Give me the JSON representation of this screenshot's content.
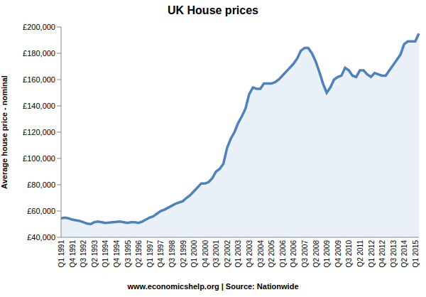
{
  "chart_data": {
    "type": "line",
    "title": "UK House prices",
    "y_label": "Average house price - nominal",
    "annotations": [
      "www.economicshelp.org | Source: Nationwide"
    ],
    "categories": [
      "Q1 1991",
      null,
      null,
      "Q4 1991",
      null,
      null,
      "Q3 1992",
      null,
      null,
      "Q2 1993",
      null,
      null,
      "Q1 1994",
      null,
      null,
      "Q4 1994",
      null,
      null,
      "Q3 1995",
      null,
      null,
      "Q2 1996",
      null,
      null,
      "Q1 1997",
      null,
      null,
      "Q4 1997",
      null,
      null,
      "Q3 1998",
      null,
      null,
      "Q2 1999",
      null,
      null,
      "Q1 2000",
      null,
      null,
      "Q4 2000",
      null,
      null,
      "Q3 2001",
      null,
      null,
      "Q2 2002",
      null,
      null,
      "Q1 2003",
      null,
      null,
      "Q4 2003",
      null,
      null,
      "Q3 2004",
      null,
      null,
      "Q2 2005",
      null,
      null,
      "Q1 2006",
      null,
      null,
      "Q4 2006",
      null,
      null,
      "Q3 2007",
      null,
      null,
      "Q2 2008",
      null,
      null,
      "Q1 2009",
      null,
      null,
      "Q4 2009",
      null,
      null,
      "Q3 2010",
      null,
      null,
      "Q2 2011",
      null,
      null,
      "Q1 2012",
      null,
      null,
      "Q4 2012",
      null,
      null,
      "Q3 2013",
      null,
      null,
      "Q2 2014",
      null,
      null,
      "Q1 2015",
      null
    ],
    "values": [
      54500,
      55000,
      54500,
      53500,
      53000,
      52500,
      51500,
      50500,
      50000,
      51500,
      52000,
      51500,
      51000,
      51200,
      51500,
      51800,
      52000,
      51500,
      51000,
      51500,
      51500,
      51000,
      52000,
      53500,
      55000,
      56000,
      58000,
      60000,
      61000,
      62500,
      64000,
      65500,
      66500,
      67500,
      70000,
      72000,
      75000,
      78000,
      81000,
      81000,
      82000,
      85000,
      90000,
      92000,
      96000,
      108000,
      115000,
      120000,
      127000,
      132000,
      138000,
      149000,
      154000,
      153000,
      153000,
      157000,
      157000,
      157000,
      158000,
      160000,
      163000,
      166000,
      169000,
      172000,
      176000,
      182000,
      184000,
      184000,
      180000,
      174000,
      166000,
      157000,
      150000,
      154000,
      160000,
      162000,
      163000,
      169000,
      167000,
      163000,
      162000,
      167000,
      167000,
      164000,
      162000,
      165000,
      164000,
      163000,
      163000,
      167000,
      171000,
      175000,
      179000,
      187000,
      189000,
      189000,
      189000,
      195000
    ],
    "color": "#4f81bd",
    "ylim": [
      40000,
      200000
    ],
    "yticks": [
      {
        "value": 40000,
        "label": "£40,000"
      },
      {
        "value": 60000,
        "label": "£60,000"
      },
      {
        "value": 80000,
        "label": "£80,000"
      },
      {
        "value": 100000,
        "label": "£100,000"
      },
      {
        "value": 120000,
        "label": "£120,000"
      },
      {
        "value": 140000,
        "label": "£140,000"
      },
      {
        "value": 160000,
        "label": "£160,000"
      },
      {
        "value": 180000,
        "label": "£180,000"
      },
      {
        "value": 200000,
        "label": "£200,000"
      }
    ],
    "grid": false
  }
}
